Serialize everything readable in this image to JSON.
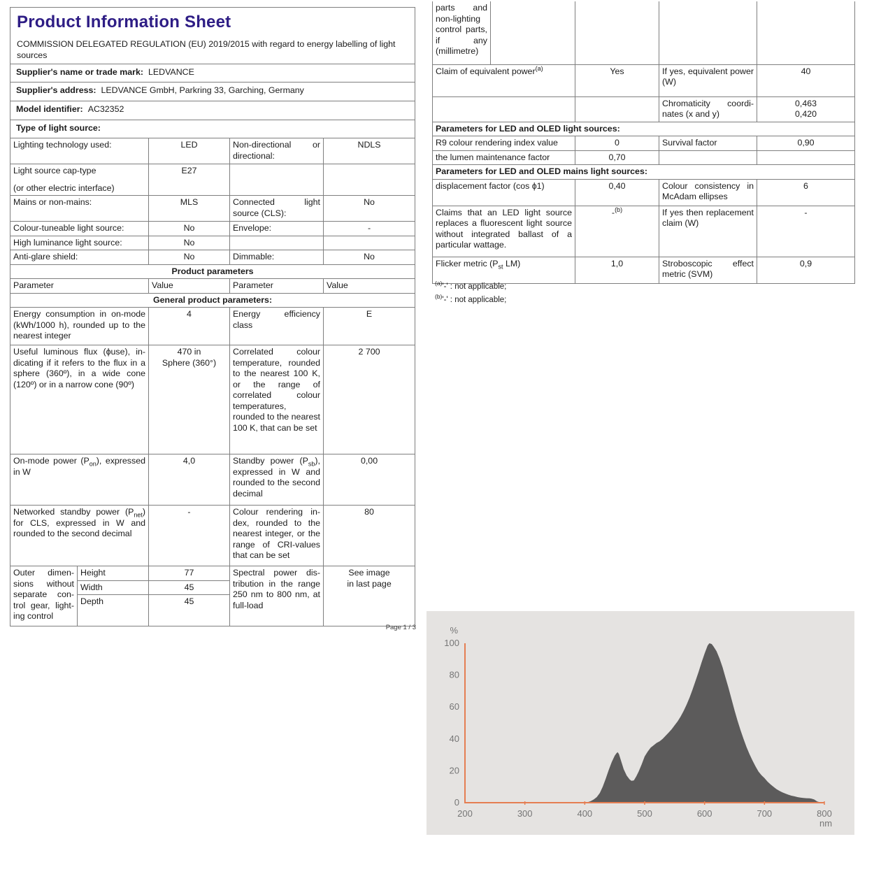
{
  "document": {
    "title": "Product Information Sheet",
    "regulation": "COMMISSION DELEGATED REGULATION (EU) 2019/2015 with regard to energy labelling of light sources",
    "page_label": "Page 1 / 3"
  },
  "supplier": {
    "name_label": "Supplier's name or trade mark:",
    "name": "LEDVANCE",
    "address_label": "Supplier's address:",
    "address": "LEDVANCE GmbH, Parkring 33, Garching, Germany",
    "model_label": "Model identifier:",
    "model": "AC32352"
  },
  "type_section": {
    "heading": "Type of light source:",
    "rows": [
      {
        "label": "Lighting technology used:",
        "value": "LED",
        "label2": "Non-directional or directional:",
        "value2": "NDLS"
      },
      {
        "label_line1": "Light source cap-type",
        "label_line2": "(or other electric interface)",
        "value": "E27",
        "label2": "",
        "value2": ""
      },
      {
        "label": "Mains or non-mains:",
        "value": "MLS",
        "label2": "Connected light source (CLS):",
        "value2": "No"
      },
      {
        "label": "Colour-tuneable light source:",
        "value": "No",
        "label2": "Envelope:",
        "value2": "-"
      },
      {
        "label": "High luminance light source:",
        "value": "No",
        "label2": "",
        "value2": ""
      },
      {
        "label": "Anti-glare shield:",
        "value": "No",
        "label2": "Dimmable:",
        "value2": "No"
      }
    ]
  },
  "product_parameters": {
    "heading": "Product parameters",
    "columns": [
      "Parameter",
      "Value",
      "Parameter",
      "Value"
    ],
    "general_heading": "General product parameters:",
    "energy": {
      "label": "Energy consumption in on-mode (kWh/1000 h), rounded up to the nearest integer",
      "value": "4",
      "label2": "Energy efficiency class",
      "value2": "E"
    },
    "flux": {
      "label": "Useful luminous flux (ϕuse), in­dicating if it refers to the flux in a sphere (360º), in a wide cone (120º) or in a narrow cone (90º)",
      "value": "470 in\nSphere (360°)",
      "label2": "Correlated colour temperature, rounded to the near­est 100 K, or the range of correlat­ed colour temper­atures, rounded to the nearest 100 K, that can be set",
      "value2": "2 700"
    },
    "on_mode": {
      "label_pre": "On-mode power (P",
      "label_sub": "on",
      "label_post": "), expressed in W",
      "value": "4,0",
      "label2_pre": "Standby power (P",
      "label2_sub": "sb",
      "label2_post": "), expressed in W and rounded to the sec­ond decimal",
      "value2": "0,00"
    },
    "net_standby": {
      "label_pre": "Networked standby power (P",
      "label_sub": "net",
      "label_post": ") for CLS, expressed in W and rounded to the second dec­imal",
      "value": "-",
      "label2": "Colour rendering in­dex, rounded to the nearest integer, or the range of CRI-values that can be set",
      "value2": "80"
    },
    "outer_dimensions": {
      "label": "Outer dimen­sions without separate con­trol gear, light­ing control",
      "dims": [
        {
          "name": "Height",
          "value": "77"
        },
        {
          "name": "Width",
          "value": "45"
        },
        {
          "name": "Depth",
          "value": "45"
        }
      ],
      "label2": "Spectral power dis­tribution in the range 250 nm to 800 nm, at full-load",
      "value2": "See image\nin last page"
    }
  },
  "right_column": {
    "continuation_label": "parts and non-lighting con­trol parts, if any (millime­tre)",
    "claim": {
      "label_pre": "Claim of equivalent power",
      "label_sup": "(a)",
      "value": "Yes",
      "label2": "If yes, equivalent power (W)",
      "value2": "40"
    },
    "chromaticity": {
      "label2": "Chromaticity coordi­nates (x and y)",
      "value2": "0,463\n0,420"
    },
    "led_heading": "Parameters for LED and OLED light sources:",
    "r9": {
      "label": "R9 colour rendering index value",
      "value": "0",
      "label2": "Survival factor",
      "value2": "0,90"
    },
    "lumen": {
      "label": "the lumen maintenance factor",
      "value": "0,70",
      "label2": "",
      "value2": ""
    },
    "mains_heading": "Parameters for LED and OLED mains light sources:",
    "displacement": {
      "label": "displacement factor (cos ϕ1)",
      "value": "0,40",
      "label2": "Colour consistency in McAdam ellipses",
      "value2": "6"
    },
    "fluorescent_claim": {
      "label": "Claims that an LED light source replaces a fluorescent light source without integrated bal­last of a particular wattage.",
      "value_pre": "-",
      "value_sup": "(b)",
      "label2": "If yes then replace­ment claim (W)",
      "value2": "-"
    },
    "flicker": {
      "label_pre": "Flicker metric (P",
      "label_sub": "st",
      "label_post": " LM)",
      "value": "1,0",
      "label2": "Stroboscopic effect metric (SVM)",
      "value2": "0,9"
    },
    "footnotes": [
      {
        "sup": "(a)",
        "text": "'-' : not applicable;"
      },
      {
        "sup": "(b)",
        "text": "'-' : not applicable;"
      }
    ]
  },
  "chart_data": {
    "type": "area",
    "title": "Spectral power distribution in the range 250 nm to 800 nm, at full-load",
    "xlabel": "nm",
    "ylabel": "%",
    "xlim": [
      200,
      800
    ],
    "ylim": [
      0,
      100
    ],
    "xticks": [
      200,
      300,
      400,
      500,
      600,
      700,
      800
    ],
    "yticks": [
      0,
      20,
      40,
      60,
      80,
      100
    ],
    "grid": false,
    "legend": false,
    "series": [
      {
        "name": "spectral power distribution",
        "points": [
          [
            400,
            0
          ],
          [
            405,
            0.3
          ],
          [
            410,
            1
          ],
          [
            415,
            2
          ],
          [
            420,
            3.5
          ],
          [
            425,
            6
          ],
          [
            430,
            10
          ],
          [
            435,
            15
          ],
          [
            440,
            20.5
          ],
          [
            445,
            25.5
          ],
          [
            450,
            29.5
          ],
          [
            453,
            31
          ],
          [
            455,
            31.7
          ],
          [
            457,
            30.5
          ],
          [
            460,
            27
          ],
          [
            465,
            21
          ],
          [
            470,
            17
          ],
          [
            475,
            14.5
          ],
          [
            478,
            13.7
          ],
          [
            482,
            14
          ],
          [
            486,
            16.5
          ],
          [
            490,
            19.5
          ],
          [
            495,
            24
          ],
          [
            500,
            29
          ],
          [
            505,
            32
          ],
          [
            510,
            34.5
          ],
          [
            515,
            36
          ],
          [
            520,
            37.5
          ],
          [
            525,
            38.5
          ],
          [
            530,
            40
          ],
          [
            535,
            42
          ],
          [
            540,
            44
          ],
          [
            545,
            46
          ],
          [
            550,
            48.5
          ],
          [
            555,
            51
          ],
          [
            560,
            54
          ],
          [
            565,
            57.5
          ],
          [
            570,
            61.5
          ],
          [
            575,
            66
          ],
          [
            580,
            71
          ],
          [
            585,
            76.5
          ],
          [
            590,
            82
          ],
          [
            595,
            88
          ],
          [
            600,
            93.5
          ],
          [
            605,
            98.5
          ],
          [
            608,
            100
          ],
          [
            612,
            99.5
          ],
          [
            615,
            98
          ],
          [
            620,
            95
          ],
          [
            625,
            90.5
          ],
          [
            630,
            85
          ],
          [
            635,
            78.5
          ],
          [
            640,
            72
          ],
          [
            645,
            65
          ],
          [
            650,
            58
          ],
          [
            655,
            51.5
          ],
          [
            660,
            45.5
          ],
          [
            665,
            40
          ],
          [
            670,
            35
          ],
          [
            675,
            30.5
          ],
          [
            680,
            26.5
          ],
          [
            685,
            22.8
          ],
          [
            690,
            19.5
          ],
          [
            695,
            17.3
          ],
          [
            700,
            15.5
          ],
          [
            705,
            13.3
          ],
          [
            710,
            11.5
          ],
          [
            715,
            10
          ],
          [
            720,
            8.5
          ],
          [
            725,
            7.4
          ],
          [
            730,
            6.5
          ],
          [
            735,
            5.7
          ],
          [
            740,
            5
          ],
          [
            745,
            4.4
          ],
          [
            750,
            4
          ],
          [
            755,
            3.5
          ],
          [
            760,
            3.2
          ],
          [
            765,
            3
          ],
          [
            770,
            2.8
          ],
          [
            775,
            2.7
          ],
          [
            778,
            2.6
          ],
          [
            783,
            2
          ],
          [
            788,
            0.8
          ],
          [
            793,
            0.2
          ],
          [
            800,
            0
          ]
        ]
      }
    ],
    "colors": {
      "fill": "#5c5b5b",
      "axis": "#e57e52",
      "tick_text": "#767676",
      "background": "#e5e3e1"
    }
  }
}
